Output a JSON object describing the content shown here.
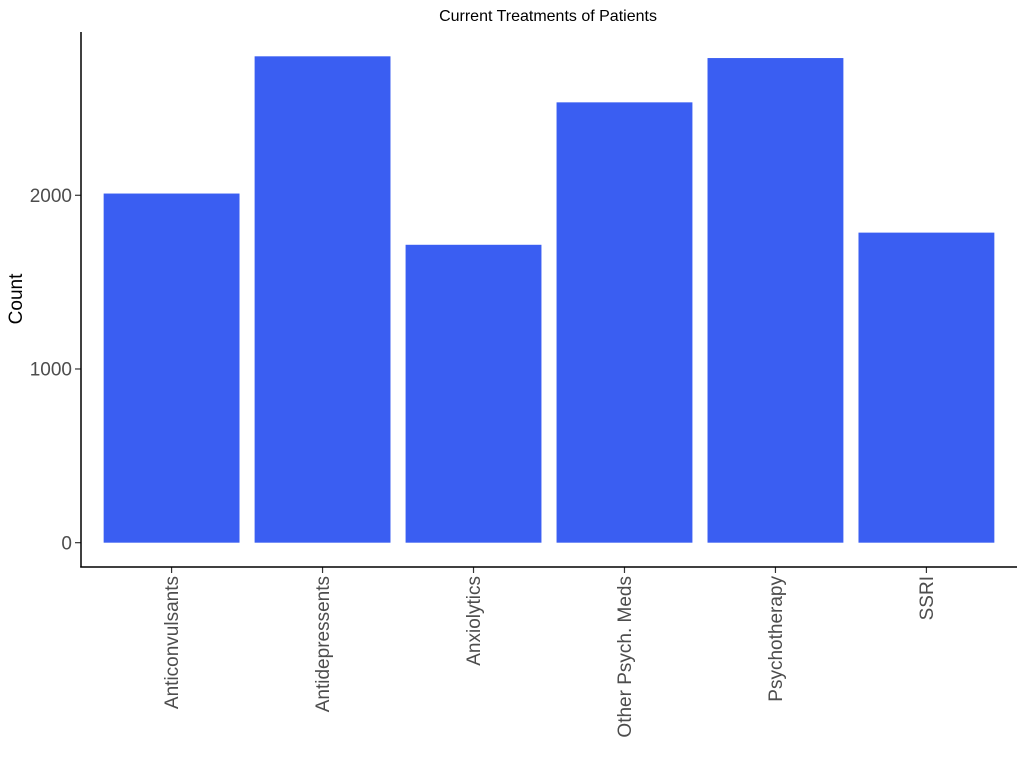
{
  "chart_data": {
    "type": "bar",
    "title": "Current Treatments of Patients",
    "xlabel": "",
    "ylabel": "Count",
    "categories": [
      "Anticonvulsants",
      "Antidepressents",
      "Anxiolytics",
      "Other Psych. Meds",
      "Psychotherapy",
      "SSRI"
    ],
    "values": [
      2010,
      2800,
      1715,
      2535,
      2790,
      1785
    ],
    "yticks": [
      0,
      1000,
      2000
    ],
    "ytick_labels": [
      "0",
      "1000",
      "2000"
    ],
    "ylim": [
      -140,
      2940
    ],
    "grid": false,
    "legend": "none",
    "bar_color": "#3A5EF2",
    "x_tick_rotation": -90
  }
}
